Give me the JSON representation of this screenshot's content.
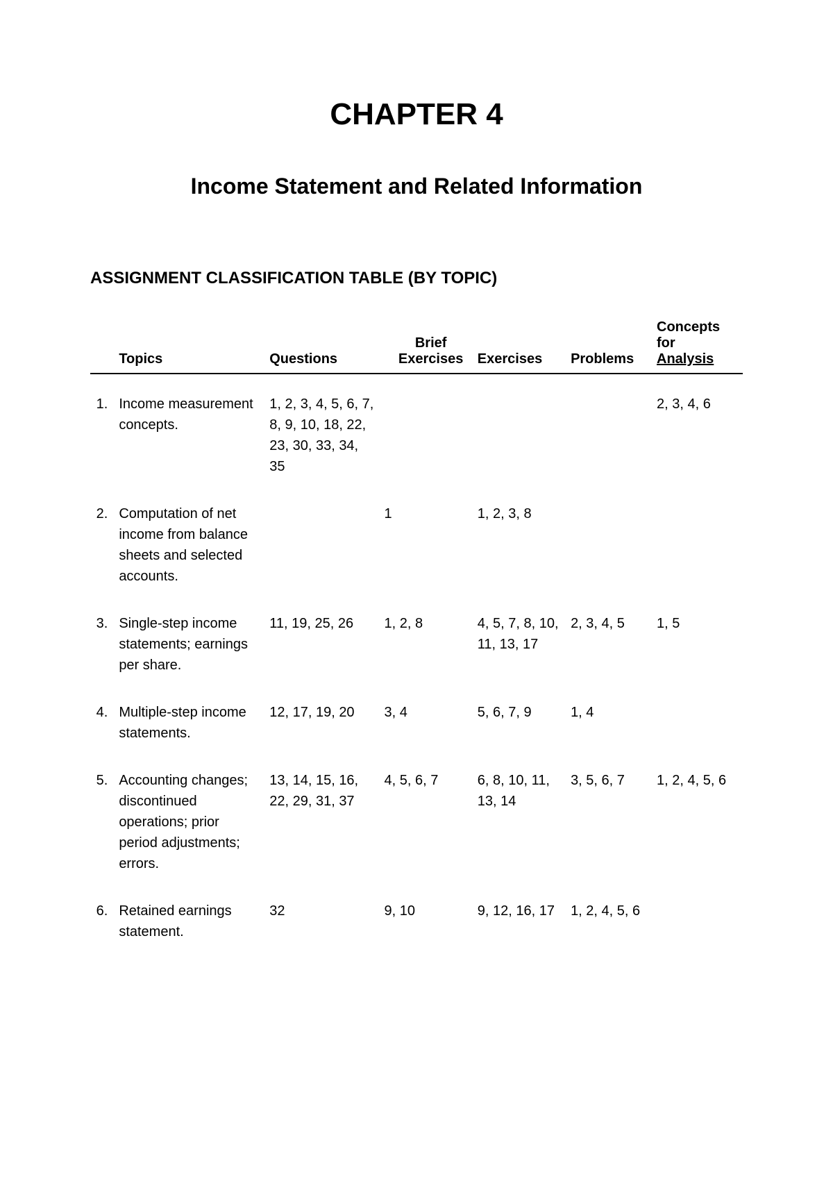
{
  "chapter": {
    "title": "CHAPTER 4",
    "subtitle": "Income Statement and Related Information"
  },
  "section": {
    "title": "ASSIGNMENT CLASSIFICATION TABLE (BY TOPIC)"
  },
  "table": {
    "headers": {
      "topics": "Topics",
      "questions": "Questions",
      "brief": "Brief",
      "exercises_label": "Exercises",
      "exercises": "Exercises",
      "problems": "Problems",
      "concepts": "Concepts",
      "for": "for",
      "analysis": "Analysis"
    },
    "rows": [
      {
        "num": "1.",
        "topic": "Income measurement concepts.",
        "questions": "1, 2, 3, 4, 5, 6, 7, 8, 9, 10, 18, 22, 23, 30, 33, 34, 35",
        "brief_exercises": "",
        "exercises": "",
        "problems": "",
        "concepts": "2, 3, 4, 6"
      },
      {
        "num": "2.",
        "topic": "Computation of net income from balance sheets and selected accounts.",
        "questions": "",
        "brief_exercises": "1",
        "exercises": "1, 2, 3, 8",
        "problems": "",
        "concepts": ""
      },
      {
        "num": "3.",
        "topic": "Single-step income statements; earnings per share.",
        "questions": "11, 19, 25, 26",
        "brief_exercises": "1, 2, 8",
        "exercises": "4, 5, 7, 8, 10, 11, 13, 17",
        "problems": "2, 3, 4, 5",
        "concepts": "1, 5"
      },
      {
        "num": "4.",
        "topic": "Multiple-step income statements.",
        "questions": "12, 17, 19, 20",
        "brief_exercises": "3, 4",
        "exercises": "5, 6, 7, 9",
        "problems": "1, 4",
        "concepts": ""
      },
      {
        "num": "5.",
        "topic": "Accounting changes; discontinued operations; prior period adjustments; errors.",
        "questions": "13, 14, 15, 16, 22, 29, 31, 37",
        "brief_exercises": "4, 5, 6, 7",
        "exercises": "6, 8, 10, 11, 13, 14",
        "problems": "3, 5, 6, 7",
        "concepts": "1, 2, 4, 5, 6"
      },
      {
        "num": "6.",
        "topic": "Retained earnings statement.",
        "questions": "32",
        "brief_exercises": "9, 10",
        "exercises": "9, 12, 16, 17",
        "problems": "1, 2, 4, 5, 6",
        "concepts": ""
      }
    ]
  }
}
